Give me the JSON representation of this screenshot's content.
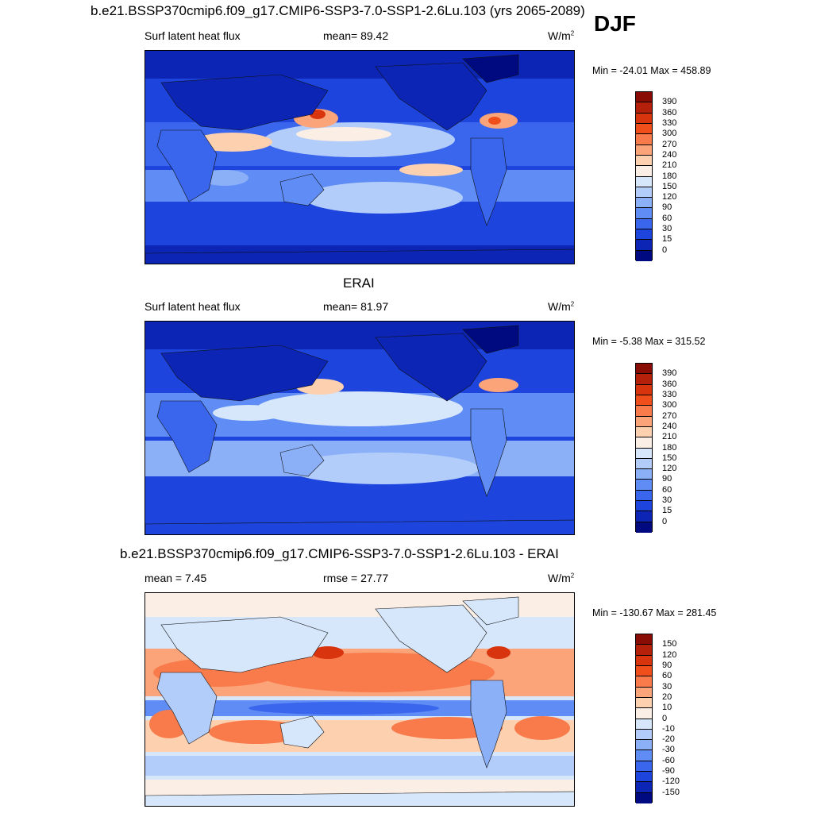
{
  "season": "DJF",
  "panels": [
    {
      "title": "b.e21.BSSP370cmip6.f09_g17.CMIP6-SSP3-7.0-SSP1-2.6Lu.103 (yrs 2065-2089)",
      "left_label": "Surf latent heat flux",
      "center_label": "mean=  89.42",
      "units": "W/m",
      "units_sup": "2",
      "minmax": "Min = -24.01 Max = 458.89"
    },
    {
      "title": "ERAI",
      "left_label": "Surf latent heat flux",
      "center_label": "mean=  81.97",
      "units": "W/m",
      "units_sup": "2",
      "minmax": "Min =  -5.38 Max = 315.52"
    },
    {
      "title": "b.e21.BSSP370cmip6.f09_g17.CMIP6-SSP3-7.0-SSP1-2.6Lu.103 - ERAI",
      "left_label": "mean =   7.45",
      "center_label": "rmse =  27.77",
      "units": "W/m",
      "units_sup": "2",
      "minmax": "Min = -130.67 Max = 281.45"
    }
  ],
  "colorbars": {
    "abs": {
      "labels": [
        "390",
        "360",
        "330",
        "300",
        "270",
        "240",
        "210",
        "180",
        "150",
        "120",
        "90",
        "60",
        "30",
        "15",
        "0"
      ],
      "colors": [
        "#8a0d05",
        "#b42009",
        "#d8340d",
        "#f04f1c",
        "#f97a4a",
        "#fba47a",
        "#fdd0b0",
        "#fbeee4",
        "#d6e6fb",
        "#b3cdfb",
        "#8cb0f8",
        "#5f8cf5",
        "#3a66ee",
        "#1d44dc",
        "#0c25b5",
        "#000a80"
      ]
    },
    "diff": {
      "labels": [
        "150",
        "120",
        "90",
        "60",
        "30",
        "20",
        "10",
        "0",
        "-10",
        "-20",
        "-30",
        "-60",
        "-90",
        "-120",
        "-150"
      ],
      "colors": [
        "#8a0d05",
        "#b42009",
        "#d8340d",
        "#f04f1c",
        "#f97a4a",
        "#fba47a",
        "#fdd0b0",
        "#fbeee4",
        "#d6e6fb",
        "#b3cdfb",
        "#8cb0f8",
        "#5f8cf5",
        "#3a66ee",
        "#1d44dc",
        "#0c25b5",
        "#000a80"
      ]
    }
  }
}
